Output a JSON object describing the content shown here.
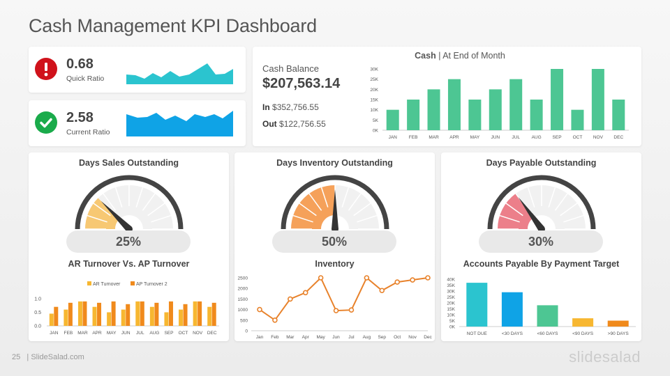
{
  "page": {
    "title": "Cash Management KPI Dashboard",
    "footer_page": "25",
    "footer_site": "| SlideSalad.com",
    "logo": "slidesalad"
  },
  "kpis": [
    {
      "value": "0.68",
      "label": "Quick Ratio",
      "icon": "exclamation-icon",
      "icon_color": "#d0121b",
      "spark_color": "#2bc4cf"
    },
    {
      "value": "2.58",
      "label": "Current Ratio",
      "icon": "checkmark-icon",
      "icon_color": "#1aab4b",
      "spark_color": "#0fa3e6"
    }
  ],
  "cash_balance": {
    "label": "Cash Balance",
    "value": "$207,563.14",
    "in_label": "In",
    "in_value": "$352,756.55",
    "out_label": "Out",
    "out_value": "$122,756.55"
  },
  "gauges": [
    {
      "title": "Days Sales Outstanding",
      "value_text": "25%",
      "percent": 25,
      "color": "#f7c873"
    },
    {
      "title": "Days Inventory Outstanding",
      "value_text": "50%",
      "percent": 50,
      "color": "#f5a15a"
    },
    {
      "title": "Days Payable Outstanding",
      "value_text": "30%",
      "percent": 30,
      "color": "#ec7f8a"
    }
  ],
  "chart_data": [
    {
      "type": "bar",
      "title_bold": "Cash",
      "title_rest": " | At End of Month",
      "categories": [
        "JAN",
        "FEB",
        "MAR",
        "APR",
        "MAY",
        "JUN",
        "JUL",
        "AUG",
        "SEP",
        "OCT",
        "NOV",
        "DEC"
      ],
      "values": [
        10000,
        15000,
        20000,
        25000,
        15000,
        20000,
        25000,
        15000,
        30000,
        10000,
        30000,
        15000
      ],
      "ylim": [
        0,
        30000
      ],
      "yticks": [
        "0K",
        "5K",
        "10K",
        "15K",
        "20K",
        "25K",
        "30K"
      ],
      "color": "#4dc693"
    },
    {
      "type": "bar",
      "title": "AR Turnover Vs. AP Turnover",
      "categories": [
        "JAN",
        "FEB",
        "MAR",
        "APR",
        "MAY",
        "JUN",
        "JUL",
        "AUG",
        "SEP",
        "OCT",
        "NOV",
        "DEC"
      ],
      "series": [
        {
          "name": "AR Turnover",
          "values": [
            0.45,
            0.6,
            0.9,
            0.7,
            0.5,
            0.6,
            0.9,
            0.7,
            0.5,
            0.6,
            0.9,
            0.7
          ],
          "color": "#f7b731"
        },
        {
          "name": "AP Turnover 2",
          "values": [
            0.7,
            0.85,
            0.9,
            0.85,
            0.9,
            0.8,
            0.9,
            0.85,
            0.9,
            0.8,
            0.9,
            0.85
          ],
          "color": "#f08a1c"
        }
      ],
      "ylim": [
        0,
        1.0
      ],
      "yticks": [
        "0.0",
        "0.5",
        "1.0"
      ]
    },
    {
      "type": "line",
      "title": "Inventory",
      "categories": [
        "Jan",
        "Feb",
        "Mar",
        "Apr",
        "May",
        "Jun",
        "Jul",
        "Aug",
        "Sep",
        "Oct",
        "Nov",
        "Dec"
      ],
      "values": [
        1000,
        500,
        1500,
        1800,
        2500,
        950,
        980,
        2500,
        1900,
        2300,
        2400,
        2500
      ],
      "ylim": [
        0,
        2500
      ],
      "yticks": [
        "0",
        "500",
        "1000",
        "1500",
        "2000",
        "2500"
      ],
      "color": "#e8822b"
    },
    {
      "type": "bar",
      "title": "Accounts Payable By Payment Target",
      "categories": [
        "NOT DUE",
        "<30 DAYS",
        "<60 DAYS",
        "<90 DAYS",
        ">90 DAYS"
      ],
      "values": [
        37000,
        29000,
        18000,
        7000,
        5000
      ],
      "colors": [
        "#2bc4cf",
        "#0fa3e6",
        "#4dc693",
        "#f7b731",
        "#f08a1c"
      ],
      "ylim": [
        0,
        40000
      ],
      "yticks": [
        "0K",
        "5K",
        "10K",
        "15K",
        "20K",
        "25K",
        "30K",
        "35K",
        "40K"
      ]
    }
  ]
}
